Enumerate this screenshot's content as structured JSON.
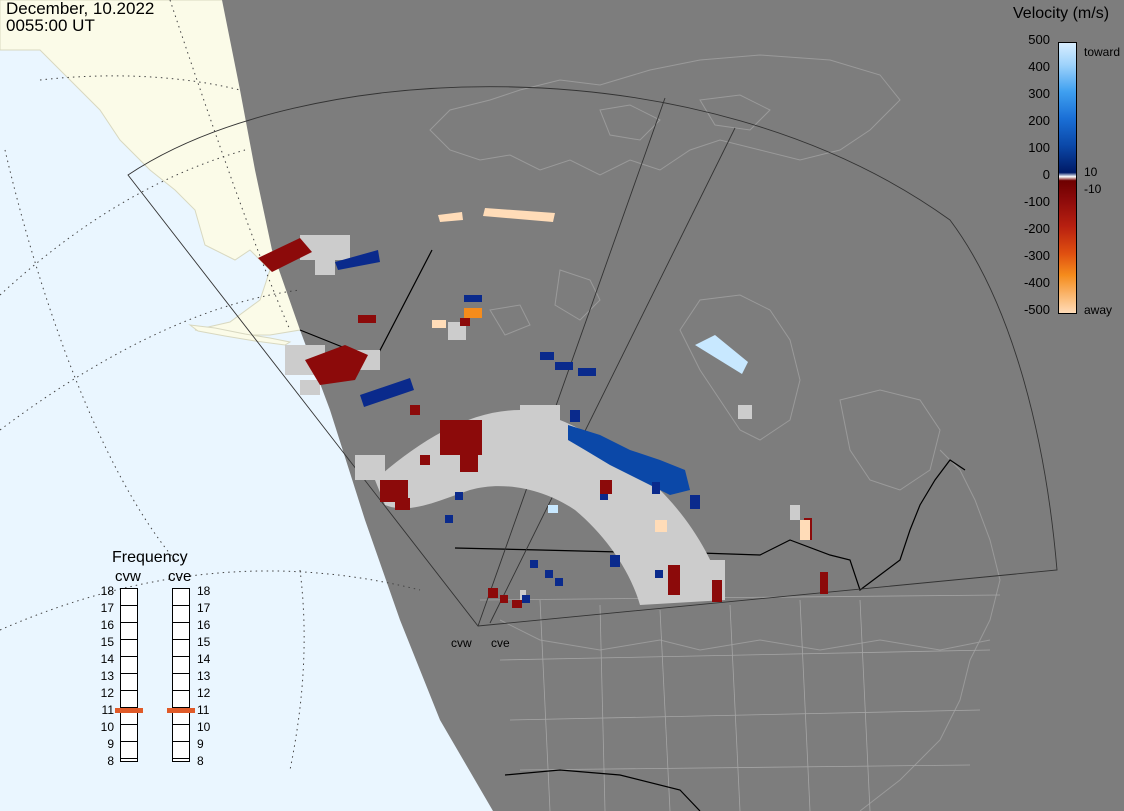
{
  "timestamp": {
    "date": "December, 10.2022",
    "time": "0055:00 UT"
  },
  "legend": {
    "title": "Velocity (m/s)",
    "ticks": [
      "500",
      "400",
      "300",
      "200",
      "100",
      "0",
      "-100",
      "-200",
      "-300",
      "-400",
      "-500"
    ],
    "inner_ticks": {
      "positive": "10",
      "negative": "-10"
    },
    "toward_label": "toward",
    "away_label": "away",
    "colors": [
      "#d8eeff",
      "#9fd3fb",
      "#3fa0f0",
      "#1a6fd6",
      "#0b48a8",
      "#0a2a8c",
      "#001a66",
      "#ffffff",
      "#6e0000",
      "#8c0a0a",
      "#b82010",
      "#e05010",
      "#f58c1c",
      "#fbc26e",
      "#ffdcb8"
    ]
  },
  "frequency": {
    "title": "Frequency",
    "radars": [
      "cvw",
      "cve"
    ],
    "scale": [
      "18",
      "17",
      "16",
      "15",
      "14",
      "13",
      "12",
      "11",
      "10",
      "9",
      "8"
    ],
    "cvw_mhz": 10.8,
    "cve_mhz": 10.8,
    "marker_color": "#e05a28"
  },
  "sites": [
    "cvw",
    "cve"
  ],
  "map_colors": {
    "night_side": "#7d7d7d",
    "ocean_day": "#eaf6ff",
    "land_day": "#fbfbe8",
    "ground_scatter": "#cccccc"
  }
}
